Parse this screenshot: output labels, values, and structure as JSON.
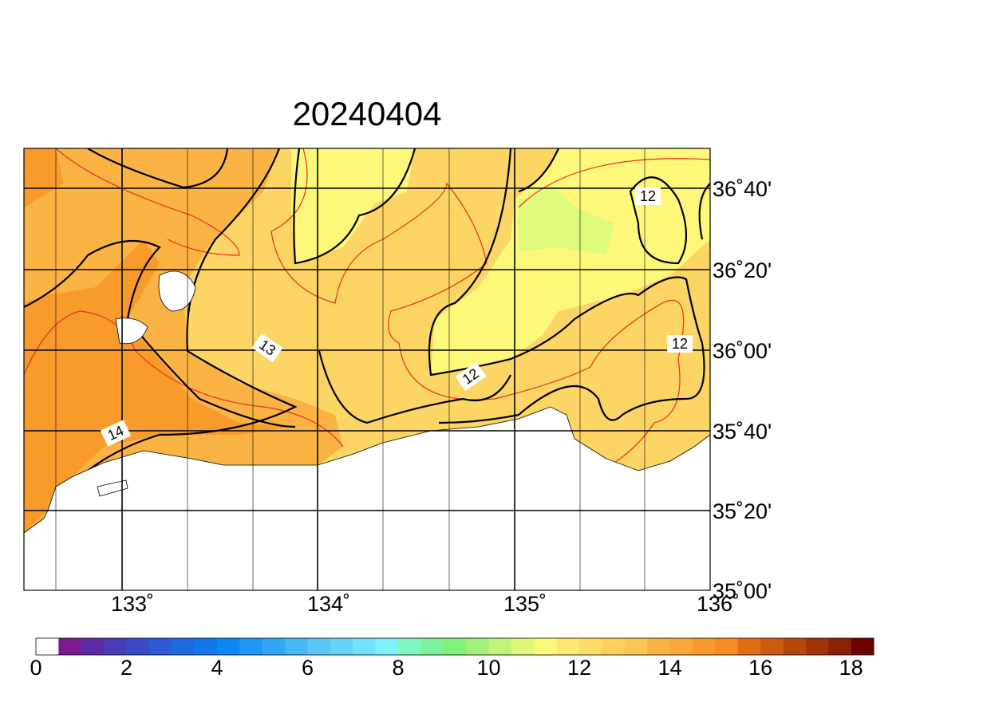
{
  "title": "20240404",
  "map": {
    "longitude_labels": [
      "133˚",
      "134˚",
      "135˚",
      "136˚"
    ],
    "latitude_labels": [
      "36˚40'",
      "36˚20'",
      "36˚00'",
      "35˚40'",
      "35˚20'",
      "35˚00'"
    ],
    "contour_labels": [
      "13",
      "12",
      "14",
      "12",
      "12"
    ]
  },
  "colorbar": {
    "colors": [
      "#ffffff",
      "#7b1a8e",
      "#5e2aa6",
      "#4a3cb8",
      "#3a4bc8",
      "#2d5ad6",
      "#1f6ae0",
      "#1177ec",
      "#0a88f5",
      "#1e98f5",
      "#32a8f5",
      "#46b8f5",
      "#5ac6f5",
      "#66d4f8",
      "#72e2fa",
      "#7ef2fc",
      "#80f6c0",
      "#7ef29a",
      "#82f07c",
      "#a0f07a",
      "#c0f47a",
      "#e0f87a",
      "#fcf87a",
      "#fde870",
      "#fcdc66",
      "#fcd05c",
      "#fbc652",
      "#fbb444",
      "#faa638",
      "#f9982c",
      "#f78a20",
      "#e06c14",
      "#cc5a0e",
      "#b8480a",
      "#a03406",
      "#8a2004",
      "#700000"
    ],
    "tick_labels": [
      "0",
      "2",
      "4",
      "6",
      "8",
      "10",
      "12",
      "14",
      "16",
      "18"
    ]
  }
}
